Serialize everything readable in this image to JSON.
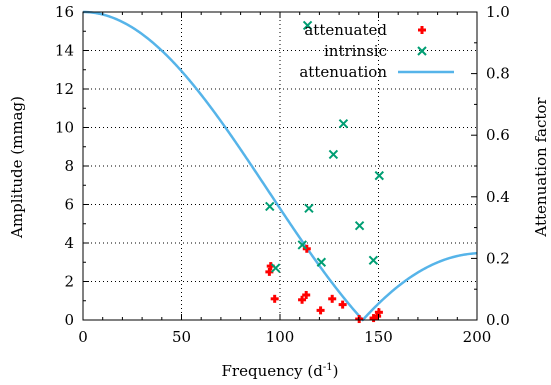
{
  "chart_data": {
    "type": "scatter",
    "xlabel_base": "Frequency (d",
    "xlabel_sup": "-1",
    "xlabel_tail": ")",
    "ylabel_left": "Amplitude (mmag)",
    "ylabel_right": "Attenuation factor",
    "xlim": [
      0,
      200
    ],
    "ylim_left": [
      0,
      16
    ],
    "ylim_right": [
      0,
      1.0
    ],
    "x_ticks": [
      0,
      50,
      100,
      150,
      200
    ],
    "x_tick_labels": [
      "0",
      "50",
      "100",
      "150",
      "200"
    ],
    "y_left_ticks": [
      0,
      2,
      4,
      6,
      8,
      10,
      12,
      14,
      16
    ],
    "y_left_tick_labels": [
      "0",
      "2",
      "4",
      "6",
      "8",
      "10",
      "12",
      "14",
      "16"
    ],
    "y_right_ticks": [
      0,
      0.2,
      0.4,
      0.6,
      0.8,
      1.0
    ],
    "y_right_tick_labels": [
      "0.0",
      "0.2",
      "0.4",
      "0.6",
      "0.8",
      "1.0"
    ],
    "grid": true,
    "legend_position": "top-right",
    "series": [
      {
        "name": "attenuated",
        "marker": "plus",
        "color": "#ff0000",
        "axis": "left",
        "points": [
          [
            94.6,
            2.5
          ],
          [
            95.3,
            2.8
          ],
          [
            97.3,
            1.1
          ],
          [
            111.2,
            1.05
          ],
          [
            113.3,
            1.3
          ],
          [
            113.6,
            3.7
          ],
          [
            120.6,
            0.5
          ],
          [
            126.5,
            1.1
          ],
          [
            131.8,
            0.8
          ],
          [
            140.2,
            0.05
          ],
          [
            147.5,
            0.1
          ],
          [
            149.3,
            0.2
          ],
          [
            150.2,
            0.4
          ]
        ]
      },
      {
        "name": "intrinsic",
        "marker": "x",
        "color": "#009e73",
        "axis": "left",
        "points": [
          [
            94.8,
            5.9
          ],
          [
            97.8,
            2.7
          ],
          [
            111.3,
            3.9
          ],
          [
            114.0,
            15.3
          ],
          [
            114.7,
            5.8
          ],
          [
            121.0,
            3.0
          ],
          [
            127.1,
            8.6
          ],
          [
            132.2,
            10.2
          ],
          [
            140.4,
            4.9
          ],
          [
            147.4,
            3.1
          ],
          [
            150.4,
            7.5
          ]
        ]
      },
      {
        "name": "attenuation",
        "type": "line",
        "color": "#56b4e9",
        "axis": "right",
        "function": "abs_sinc_over_period_142",
        "period": 142
      }
    ]
  }
}
